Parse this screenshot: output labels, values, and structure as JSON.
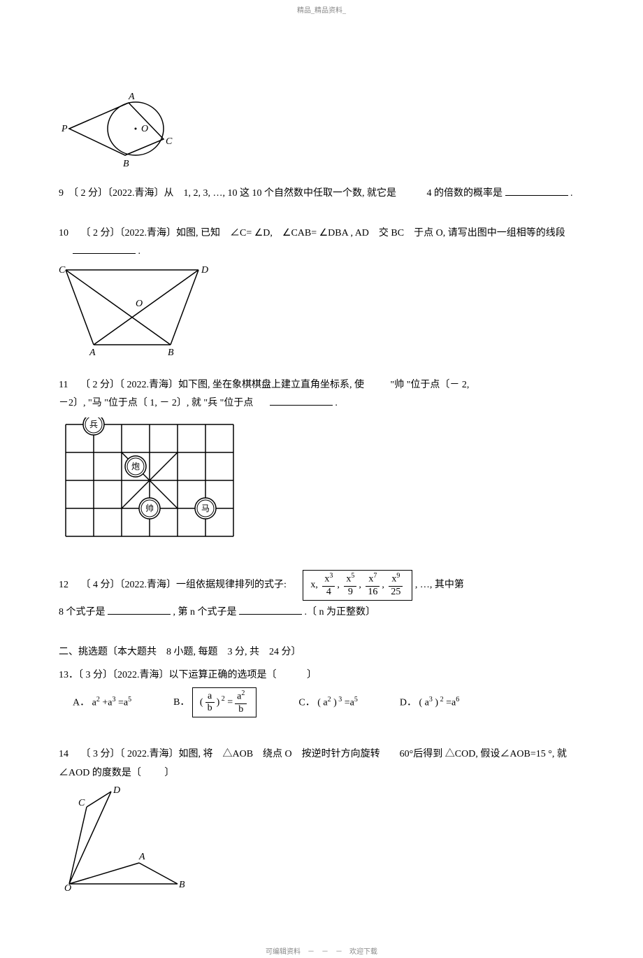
{
  "header": "精品_精品资料_",
  "footer": "可编辑资料　－　－　－　欢迎下载",
  "q8_figure": {
    "labels": {
      "A": "A",
      "B": "B",
      "C": "C",
      "P": "P",
      "O": "O"
    },
    "stroke": "#000000"
  },
  "q9": {
    "prefix": "9　〔 2 分〕〔2022.青海〕从　1, 2, 3, …, 10 这 10 个自然数中任取一个数, 就它是",
    "suffix": "4 的倍数的概率是",
    "period": "."
  },
  "q10": {
    "num": "10",
    "text1": "〔 2 分〕〔2022.青海〕如图, 已知　∠C= ∠D,　∠CAB= ∠DBA , AD　交 BC　于点 O, 请写出图中一组相等的线段",
    "period": ".",
    "figure": {
      "C": "C",
      "D": "D",
      "A": "A",
      "B": "B",
      "O": "O"
    }
  },
  "q11": {
    "num": "11",
    "text1": "〔 2 分〕〔 2022.青海〕如下图, 坐在象棋棋盘上建立直角坐标系, 使",
    "text2": "\"帅 \"位于点〔－ 2,",
    "text3": "－2〕,  \"马 \"位于点〔 1, － 2〕, 就  \"兵 \"位于点",
    "period": ".",
    "grid": {
      "rows": 4,
      "cols": 6,
      "cell": 40,
      "pieces": [
        {
          "label": "兵",
          "row": 0,
          "col": 1
        },
        {
          "label": "炮",
          "row": 1.5,
          "col": 2.5
        },
        {
          "label": "帅",
          "row": 3,
          "col": 3
        },
        {
          "label": "马",
          "row": 3,
          "col": 5
        }
      ]
    }
  },
  "q12": {
    "num": "12",
    "text1": "〔 4 分〕〔2022.青海〕一组依据规律排列的式子:",
    "seq": {
      "terms": [
        {
          "num": "x",
          "den": null
        },
        {
          "num": "x",
          "num_exp": "3",
          "den": "4"
        },
        {
          "num": "x",
          "num_exp": "5",
          "den": "9"
        },
        {
          "num": "x",
          "num_exp": "7",
          "den": "16"
        },
        {
          "num": "x",
          "num_exp": "9",
          "den": "25"
        }
      ]
    },
    "text2": ", …, 其中第",
    "text3": "8 个式子是",
    "text4": ", 第 n 个式子是",
    "text5": ".〔 n 为正整数〕"
  },
  "section2": {
    "title": "二、挑选题〔本大题共　8 小题, 每题　3 分, 共　24 分〕"
  },
  "q13": {
    "text": "13．〔 3 分〕〔2022.青海〕以下运算正确的选项是〔",
    "close": "〕",
    "options": {
      "A": {
        "label": "A．",
        "expr": "a² +a³ =a⁵"
      },
      "B": {
        "label": "B．"
      },
      "C": {
        "label": "C．",
        "expr": "( a² )³ =a⁵"
      },
      "D": {
        "label": "D．",
        "expr": "( a³ )² =a⁶"
      }
    }
  },
  "q14": {
    "num": "14",
    "text1": "〔 3 分〕〔 2022.青海〕如图, 将　△AOB　绕点 O　按逆时针方向旋转　　60°后得到 △COD, 假设∠AOB=15 °, 就 ∠AOD 的度数是〔",
    "close": "〕",
    "figure": {
      "A": "A",
      "B": "B",
      "C": "C",
      "D": "D",
      "O": "O"
    }
  }
}
